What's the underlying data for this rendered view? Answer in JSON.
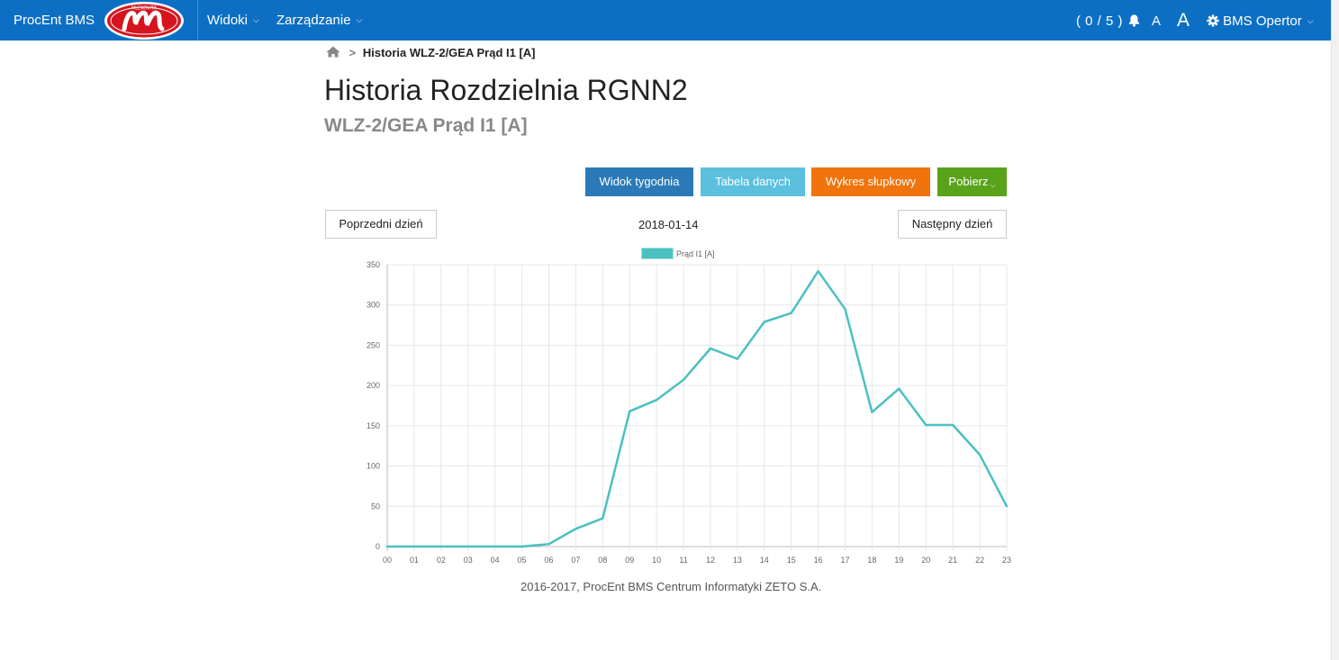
{
  "navbar": {
    "brand": "ProcEnt BMS",
    "logo_text": "MLEKOVITA",
    "menus": [
      "Widoki",
      "Zarządzanie"
    ],
    "alarm_counter": "( 0 / 5 )",
    "font_small": "A",
    "font_large": "A",
    "user": "BMS Opertor",
    "colors": {
      "bar": "#0d6fc4",
      "logo_red": "#d6141e"
    }
  },
  "breadcrumb": {
    "current": "Historia WLZ-2/GEA Prąd I1 [A]"
  },
  "page": {
    "title": "Historia Rozdzielnia RGNN2",
    "subtitle": "WLZ-2/GEA  Prąd I1 [A]"
  },
  "actions": {
    "week_view": "Widok tygodnia",
    "data_table": "Tabela danych",
    "bar_chart": "Wykres słupkowy",
    "download": "Pobierz"
  },
  "day_nav": {
    "prev": "Poprzedni dzień",
    "date": "2018-01-14",
    "next": "Następny dzień"
  },
  "chart_data": {
    "type": "line",
    "legend": "Prąd I1 [A]",
    "legend_position": "top-center",
    "color": "#4bc0c0",
    "grid": true,
    "categories": [
      "00",
      "01",
      "02",
      "03",
      "04",
      "05",
      "06",
      "07",
      "08",
      "09",
      "10",
      "11",
      "12",
      "13",
      "14",
      "15",
      "16",
      "17",
      "18",
      "19",
      "20",
      "21",
      "22",
      "23"
    ],
    "values": [
      0,
      0,
      0,
      0,
      0,
      0,
      3,
      22,
      35,
      168,
      182,
      207,
      246,
      233,
      279,
      290,
      342,
      295,
      167,
      196,
      151,
      151,
      114,
      50
    ],
    "ylim": [
      0,
      350
    ],
    "yticks": [
      "0",
      "50",
      "100",
      "150",
      "200",
      "250",
      "300",
      "350"
    ]
  },
  "footer": {
    "text": "2016-2017, ProcEnt BMS Centrum Informatyki ZETO S.A."
  }
}
